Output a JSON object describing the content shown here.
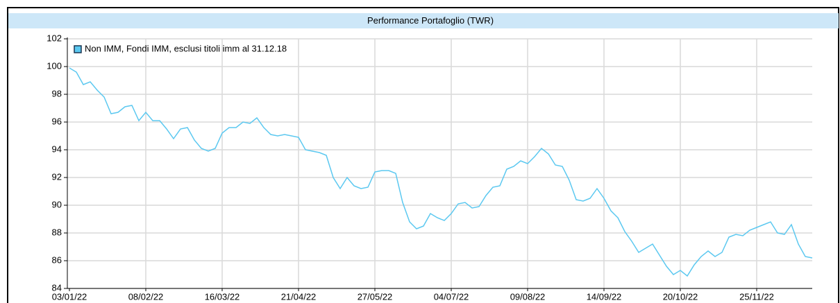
{
  "chart_data": {
    "type": "line",
    "title": "Performance Portafoglio (TWR)",
    "categories": [
      "03/01/22",
      null,
      null,
      null,
      null,
      null,
      null,
      null,
      null,
      null,
      null,
      "08/02/22",
      null,
      null,
      null,
      null,
      null,
      null,
      null,
      null,
      null,
      null,
      "16/03/22",
      null,
      null,
      null,
      null,
      null,
      null,
      null,
      null,
      null,
      null,
      "21/04/22",
      null,
      null,
      null,
      null,
      null,
      null,
      null,
      null,
      null,
      null,
      "27/05/22",
      null,
      null,
      null,
      null,
      null,
      null,
      null,
      null,
      null,
      null,
      "04/07/22",
      null,
      null,
      null,
      null,
      null,
      null,
      null,
      null,
      null,
      null,
      "09/08/22",
      null,
      null,
      null,
      null,
      null,
      null,
      null,
      null,
      null,
      null,
      "14/09/22",
      null,
      null,
      null,
      null,
      null,
      null,
      null,
      null,
      null,
      null,
      "20/10/22",
      null,
      null,
      null,
      null,
      null,
      null,
      null,
      null,
      null,
      null,
      "25/11/22",
      null,
      null,
      null,
      null,
      null,
      null,
      null,
      null
    ],
    "series": [
      {
        "name": "Non IMM, Fondi IMM, esclusi titoli imm al 31.12.18",
        "color": "#5bc8f0",
        "values": [
          99.9,
          99.6,
          98.7,
          98.9,
          98.3,
          97.8,
          96.6,
          96.7,
          97.1,
          97.2,
          96.1,
          96.7,
          96.1,
          96.1,
          95.5,
          94.8,
          95.5,
          95.6,
          94.7,
          94.1,
          93.9,
          94.1,
          95.2,
          95.6,
          95.6,
          96.0,
          95.9,
          96.3,
          95.6,
          95.1,
          95.0,
          95.1,
          95.0,
          94.9,
          94.0,
          93.9,
          93.8,
          93.6,
          92.0,
          91.2,
          92.0,
          91.4,
          91.2,
          91.3,
          92.4,
          92.5,
          92.5,
          92.3,
          90.2,
          88.8,
          88.3,
          88.5,
          89.4,
          89.1,
          88.9,
          89.4,
          90.1,
          90.2,
          89.8,
          89.9,
          90.7,
          91.3,
          91.4,
          92.6,
          92.8,
          93.2,
          93.0,
          93.5,
          94.1,
          93.7,
          92.9,
          92.8,
          91.8,
          90.4,
          90.3,
          90.5,
          91.2,
          90.5,
          89.6,
          89.1,
          88.1,
          87.4,
          86.6,
          86.9,
          87.2,
          86.4,
          85.6,
          85.0,
          85.3,
          84.9,
          85.7,
          86.3,
          86.7,
          86.3,
          86.6,
          87.7,
          87.9,
          87.8,
          88.2,
          88.4,
          88.6,
          88.8,
          88.0,
          87.9,
          88.6,
          87.2,
          86.3,
          86.2
        ]
      }
    ],
    "ylim": [
      84,
      102
    ],
    "yticks": [
      84,
      86,
      88,
      90,
      92,
      94,
      96,
      98,
      100,
      102
    ],
    "grid": true,
    "legend": "top-left"
  }
}
